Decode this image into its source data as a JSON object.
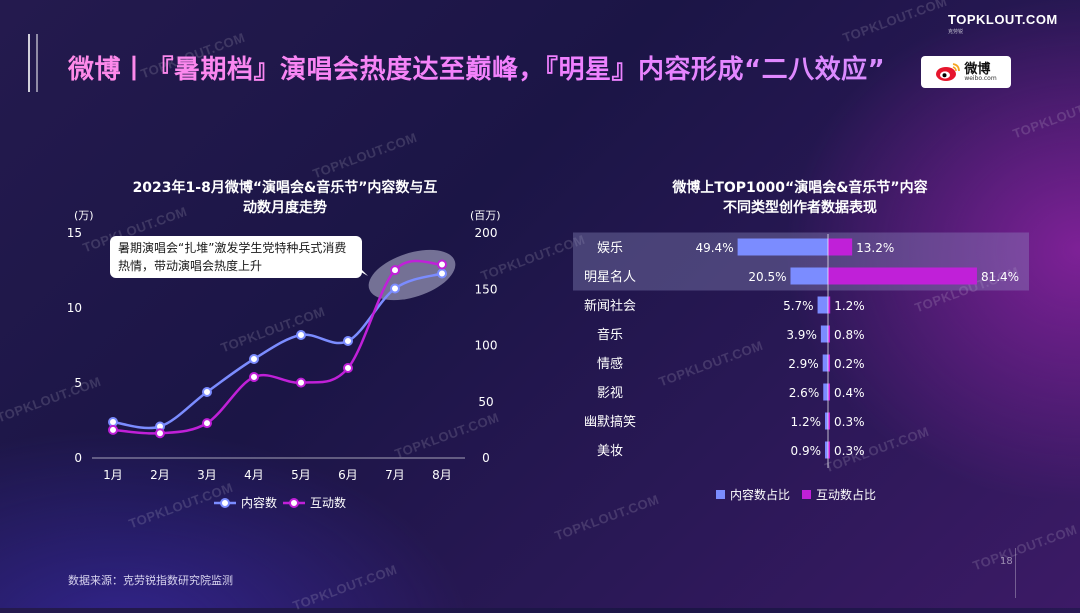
{
  "header": {
    "title": "微博丨『暑期档』演唱会热度达至巅峰，『明星』内容形成“二八效应”",
    "brand": "TOPKLOUT.COM",
    "brand_sub": "克劳锐",
    "weibo_logo_text": "微博",
    "weibo_logo_sub": "weibo.com"
  },
  "watermark_text": "TOPKLOUT.COM",
  "footer": {
    "source": "数据来源：克劳锐指数研究院监测",
    "page": "18"
  },
  "colors": {
    "series_content": "#7b8cff",
    "series_interact": "#c020d8",
    "highlight_band": "rgba(150,150,200,0.35)",
    "callout_bg": "#ffffff",
    "callout_text": "#1a1a1a"
  },
  "chart_data": [
    {
      "type": "line",
      "title_lines": [
        "2023年1-8月微博“演唱会&音乐节”内容数与互",
        "动数月度走势"
      ],
      "x": [
        "1月",
        "2月",
        "3月",
        "4月",
        "5月",
        "6月",
        "7月",
        "8月"
      ],
      "y_left_unit": "(万)",
      "y_right_unit": "(百万)",
      "y_left_ticks": [
        0,
        5,
        10,
        15
      ],
      "y_right_ticks": [
        0,
        50,
        100,
        150,
        200
      ],
      "ylim_left": [
        0,
        15
      ],
      "ylim_right": [
        0,
        200
      ],
      "series": [
        {
          "name": "内容数",
          "axis": "left",
          "values": [
            2.4,
            2.1,
            4.4,
            6.6,
            8.2,
            7.8,
            11.3,
            12.3
          ]
        },
        {
          "name": "互动数",
          "axis": "right",
          "values": [
            25,
            22,
            31,
            72,
            67,
            80,
            167,
            172
          ]
        }
      ],
      "annotation": "暑期演唱会“扎堆”激发学生党特种兵式消费热情，带动演唱会热度上升",
      "legend_position": "bottom"
    },
    {
      "type": "bar",
      "orientation": "horizontal-diverging",
      "title_lines": [
        "微博上TOP1000“演唱会&音乐节”内容",
        "不同类型创作者数据表现"
      ],
      "categories": [
        "娱乐",
        "明星名人",
        "新闻社会",
        "音乐",
        "情感",
        "影视",
        "幽默搞笑",
        "美妆"
      ],
      "series": [
        {
          "name": "内容数占比",
          "values": [
            49.4,
            20.5,
            5.7,
            3.9,
            2.9,
            2.6,
            1.2,
            0.9
          ],
          "labels": [
            "49.4%",
            "20.5%",
            "5.7%",
            "3.9%",
            "2.9%",
            "2.6%",
            "1.2%",
            "0.9%"
          ]
        },
        {
          "name": "互动数占比",
          "values": [
            13.2,
            81.4,
            1.2,
            0.8,
            0.2,
            0.4,
            0.3,
            0.3
          ],
          "labels": [
            "13.2%",
            "81.4%",
            "1.2%",
            "0.8%",
            "0.2%",
            "0.4%",
            "0.3%",
            "0.3%"
          ]
        }
      ],
      "highlighted_categories": [
        "娱乐",
        "明星名人"
      ],
      "legend_position": "bottom"
    }
  ]
}
